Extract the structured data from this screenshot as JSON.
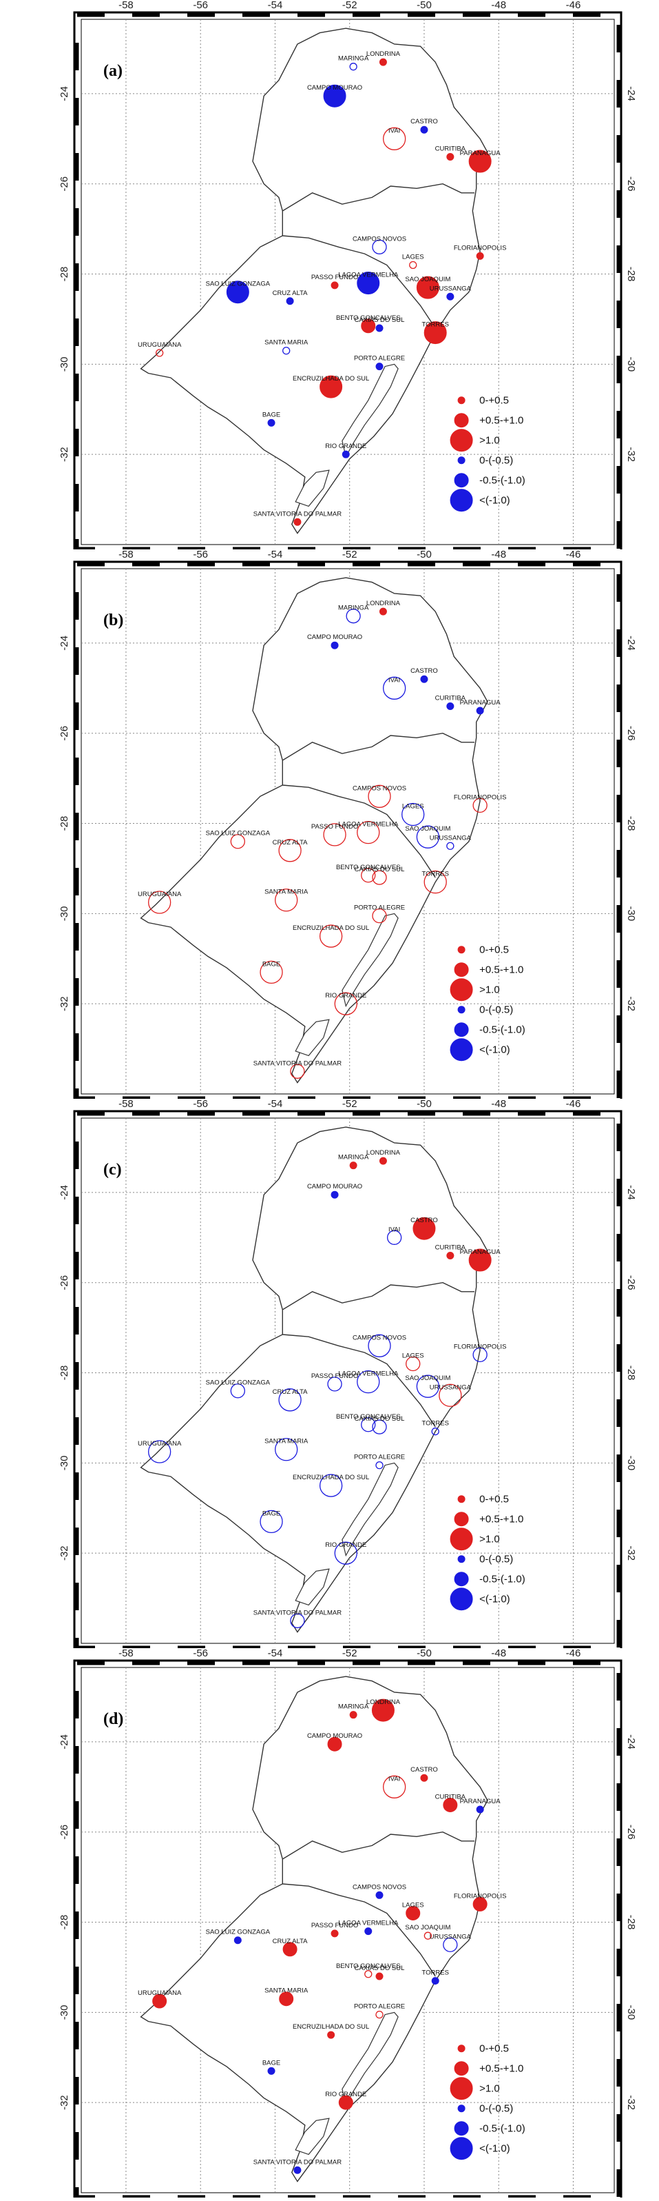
{
  "axes": {
    "lon_ticks": [
      -58,
      -56,
      -54,
      -52,
      -50,
      -48,
      -46
    ],
    "lat_ticks": [
      -24,
      -26,
      -28,
      -30,
      -32
    ],
    "lon_range": [
      -59.2,
      -44.9
    ],
    "lat_range": [
      -34.0,
      -22.35
    ]
  },
  "legend": {
    "items": [
      {
        "label": "0-+0.5",
        "color": "#e02020",
        "filled": true,
        "size": 1
      },
      {
        "label": "+0.5-+1.0",
        "color": "#e02020",
        "filled": true,
        "size": 2
      },
      {
        "label": ">1.0",
        "color": "#e02020",
        "filled": true,
        "size": 3
      },
      {
        "label": "0-(-0.5)",
        "color": "#1a1ae0",
        "filled": true,
        "size": 1
      },
      {
        "label": "-0.5-(-1.0)",
        "color": "#1a1ae0",
        "filled": true,
        "size": 2
      },
      {
        "label": "<(-1.0)",
        "color": "#1a1ae0",
        "filled": true,
        "size": 3
      }
    ]
  },
  "colors": {
    "positive": "#e02020",
    "negative": "#1a1ae0",
    "outline": "#333333",
    "grid": "#888888"
  },
  "stations": [
    {
      "name": "LONDRINA",
      "lon": -51.1,
      "lat": -23.3
    },
    {
      "name": "MARINGA",
      "lon": -51.9,
      "lat": -23.4
    },
    {
      "name": "CAMPO MOURAO",
      "lon": -52.4,
      "lat": -24.05
    },
    {
      "name": "CASTRO",
      "lon": -50.0,
      "lat": -24.8
    },
    {
      "name": "IVAI",
      "lon": -50.8,
      "lat": -25.0
    },
    {
      "name": "CURITIBA",
      "lon": -49.3,
      "lat": -25.4
    },
    {
      "name": "PARANAGUA",
      "lon": -48.5,
      "lat": -25.5
    },
    {
      "name": "CAMPOS NOVOS",
      "lon": -51.2,
      "lat": -27.4
    },
    {
      "name": "LAGES",
      "lon": -50.3,
      "lat": -27.8
    },
    {
      "name": "FLORIANOPOLIS",
      "lon": -48.5,
      "lat": -27.6
    },
    {
      "name": "PASSO FUNDO",
      "lon": -52.4,
      "lat": -28.25
    },
    {
      "name": "SAO JOAQUIM",
      "lon": -49.9,
      "lat": -28.3
    },
    {
      "name": "URUSSANGA",
      "lon": -49.3,
      "lat": -28.5
    },
    {
      "name": "SAO LUIZ GONZAGA",
      "lon": -55.0,
      "lat": -28.4
    },
    {
      "name": "LAGOA VERMELHA",
      "lon": -51.5,
      "lat": -28.2
    },
    {
      "name": "CRUZ ALTA",
      "lon": -53.6,
      "lat": -28.6
    },
    {
      "name": "BENTO GONCALVES",
      "lon": -51.5,
      "lat": -29.15
    },
    {
      "name": "CAXIAS DO SUL",
      "lon": -51.2,
      "lat": -29.2
    },
    {
      "name": "TORRES",
      "lon": -49.7,
      "lat": -29.3
    },
    {
      "name": "URUGUAIANA",
      "lon": -57.1,
      "lat": -29.75
    },
    {
      "name": "SANTA MARIA",
      "lon": -53.7,
      "lat": -29.7
    },
    {
      "name": "PORTO ALEGRE",
      "lon": -51.2,
      "lat": -30.05
    },
    {
      "name": "ENCRUZILHADA DO SUL",
      "lon": -52.5,
      "lat": -30.5
    },
    {
      "name": "BAGE",
      "lon": -54.1,
      "lat": -31.3
    },
    {
      "name": "RIO GRANDE",
      "lon": -52.1,
      "lat": -32.0
    },
    {
      "name": "SANTA VITORIA DO PALMAR",
      "lon": -53.4,
      "lat": -33.5
    }
  ],
  "panels": [
    {
      "label": "(a)",
      "values": [
        [
          "LONDRINA",
          "p",
          1,
          true
        ],
        [
          "MARINGA",
          "n",
          1,
          false
        ],
        [
          "CAMPO MOURAO",
          "n",
          3,
          true
        ],
        [
          "CASTRO",
          "n",
          1,
          true
        ],
        [
          "IVAI",
          "p",
          3,
          false
        ],
        [
          "CURITIBA",
          "p",
          1,
          true
        ],
        [
          "PARANAGUA",
          "p",
          3,
          true
        ],
        [
          "CAMPOS NOVOS",
          "n",
          2,
          false
        ],
        [
          "LAGES",
          "p",
          1,
          false
        ],
        [
          "FLORIANOPOLIS",
          "p",
          1,
          true
        ],
        [
          "PASSO FUNDO",
          "p",
          1,
          true
        ],
        [
          "SAO JOAQUIM",
          "p",
          3,
          true
        ],
        [
          "URUSSANGA",
          "n",
          1,
          true
        ],
        [
          "SAO LUIZ GONZAGA",
          "n",
          3,
          true
        ],
        [
          "LAGOA VERMELHA",
          "n",
          3,
          true
        ],
        [
          "CRUZ ALTA",
          "n",
          1,
          true
        ],
        [
          "BENTO GONCALVES",
          "p",
          2,
          true
        ],
        [
          "CAXIAS DO SUL",
          "n",
          1,
          true
        ],
        [
          "TORRES",
          "p",
          3,
          true
        ],
        [
          "URUGUAIANA",
          "p",
          1,
          false
        ],
        [
          "SANTA MARIA",
          "n",
          1,
          false
        ],
        [
          "PORTO ALEGRE",
          "n",
          1,
          true
        ],
        [
          "ENCRUZILHADA DO SUL",
          "p",
          3,
          true
        ],
        [
          "BAGE",
          "n",
          1,
          true
        ],
        [
          "RIO GRANDE",
          "n",
          1,
          true
        ],
        [
          "SANTA VITORIA DO PALMAR",
          "p",
          1,
          true
        ]
      ]
    },
    {
      "label": "(b)",
      "values": [
        [
          "LONDRINA",
          "p",
          1,
          true
        ],
        [
          "MARINGA",
          "n",
          2,
          false
        ],
        [
          "CAMPO MOURAO",
          "n",
          1,
          true
        ],
        [
          "CASTRO",
          "n",
          1,
          true
        ],
        [
          "IVAI",
          "n",
          3,
          false
        ],
        [
          "CURITIBA",
          "n",
          1,
          true
        ],
        [
          "PARANAGUA",
          "n",
          1,
          true
        ],
        [
          "CAMPOS NOVOS",
          "p",
          3,
          false
        ],
        [
          "LAGES",
          "n",
          3,
          false
        ],
        [
          "FLORIANOPOLIS",
          "p",
          2,
          false
        ],
        [
          "PASSO FUNDO",
          "p",
          3,
          false
        ],
        [
          "SAO JOAQUIM",
          "n",
          3,
          false
        ],
        [
          "URUSSANGA",
          "n",
          1,
          false
        ],
        [
          "SAO LUIZ GONZAGA",
          "p",
          2,
          false
        ],
        [
          "LAGOA VERMELHA",
          "p",
          3,
          false
        ],
        [
          "CRUZ ALTA",
          "p",
          3,
          false
        ],
        [
          "BENTO GONCALVES",
          "p",
          2,
          false
        ],
        [
          "CAXIAS DO SUL",
          "p",
          2,
          false
        ],
        [
          "TORRES",
          "p",
          3,
          false
        ],
        [
          "URUGUAIANA",
          "p",
          3,
          false
        ],
        [
          "SANTA MARIA",
          "p",
          3,
          false
        ],
        [
          "PORTO ALEGRE",
          "p",
          2,
          false
        ],
        [
          "ENCRUZILHADA DO SUL",
          "p",
          3,
          false
        ],
        [
          "BAGE",
          "p",
          3,
          false
        ],
        [
          "RIO GRANDE",
          "p",
          3,
          false
        ],
        [
          "SANTA VITORIA DO PALMAR",
          "p",
          2,
          false
        ]
      ]
    },
    {
      "label": "(c)",
      "values": [
        [
          "LONDRINA",
          "p",
          1,
          true
        ],
        [
          "MARINGA",
          "p",
          1,
          true
        ],
        [
          "CAMPO MOURAO",
          "n",
          1,
          true
        ],
        [
          "CASTRO",
          "p",
          3,
          true
        ],
        [
          "IVAI",
          "n",
          2,
          false
        ],
        [
          "CURITIBA",
          "p",
          1,
          true
        ],
        [
          "PARANAGUA",
          "p",
          3,
          true
        ],
        [
          "CAMPOS NOVOS",
          "n",
          3,
          false
        ],
        [
          "LAGES",
          "p",
          2,
          false
        ],
        [
          "FLORIANOPOLIS",
          "n",
          2,
          false
        ],
        [
          "PASSO FUNDO",
          "n",
          2,
          false
        ],
        [
          "SAO JOAQUIM",
          "n",
          3,
          false
        ],
        [
          "URUSSANGA",
          "p",
          3,
          false
        ],
        [
          "SAO LUIZ GONZAGA",
          "n",
          2,
          false
        ],
        [
          "LAGOA VERMELHA",
          "n",
          3,
          false
        ],
        [
          "CRUZ ALTA",
          "n",
          3,
          false
        ],
        [
          "BENTO GONCALVES",
          "n",
          2,
          false
        ],
        [
          "CAXIAS DO SUL",
          "n",
          2,
          false
        ],
        [
          "TORRES",
          "n",
          1,
          false
        ],
        [
          "URUGUAIANA",
          "n",
          3,
          false
        ],
        [
          "SANTA MARIA",
          "n",
          3,
          false
        ],
        [
          "PORTO ALEGRE",
          "n",
          1,
          false
        ],
        [
          "ENCRUZILHADA DO SUL",
          "n",
          3,
          false
        ],
        [
          "BAGE",
          "n",
          3,
          false
        ],
        [
          "RIO GRANDE",
          "n",
          3,
          false
        ],
        [
          "SANTA VITORIA DO PALMAR",
          "n",
          2,
          false
        ]
      ]
    },
    {
      "label": "(d)",
      "values": [
        [
          "LONDRINA",
          "p",
          3,
          true
        ],
        [
          "MARINGA",
          "p",
          1,
          true
        ],
        [
          "CAMPO MOURAO",
          "p",
          2,
          true
        ],
        [
          "CASTRO",
          "p",
          1,
          true
        ],
        [
          "IVAI",
          "p",
          3,
          false
        ],
        [
          "CURITIBA",
          "p",
          2,
          true
        ],
        [
          "PARANAGUA",
          "n",
          1,
          true
        ],
        [
          "CAMPOS NOVOS",
          "n",
          1,
          true
        ],
        [
          "LAGES",
          "p",
          2,
          true
        ],
        [
          "FLORIANOPOLIS",
          "p",
          2,
          true
        ],
        [
          "PASSO FUNDO",
          "p",
          1,
          true
        ],
        [
          "SAO JOAQUIM",
          "p",
          1,
          false
        ],
        [
          "URUSSANGA",
          "n",
          2,
          false
        ],
        [
          "SAO LUIZ GONZAGA",
          "n",
          1,
          true
        ],
        [
          "LAGOA VERMELHA",
          "n",
          1,
          true
        ],
        [
          "CRUZ ALTA",
          "p",
          2,
          true
        ],
        [
          "BENTO GONCALVES",
          "p",
          1,
          false
        ],
        [
          "CAXIAS DO SUL",
          "p",
          1,
          true
        ],
        [
          "TORRES",
          "n",
          1,
          true
        ],
        [
          "URUGUAIANA",
          "p",
          2,
          true
        ],
        [
          "SANTA MARIA",
          "p",
          2,
          true
        ],
        [
          "PORTO ALEGRE",
          "p",
          1,
          false
        ],
        [
          "ENCRUZILHADA DO SUL",
          "p",
          1,
          true
        ],
        [
          "BAGE",
          "n",
          1,
          true
        ],
        [
          "RIO GRANDE",
          "p",
          2,
          true
        ],
        [
          "SANTA VITORIA DO PALMAR",
          "n",
          1,
          true
        ]
      ]
    }
  ]
}
